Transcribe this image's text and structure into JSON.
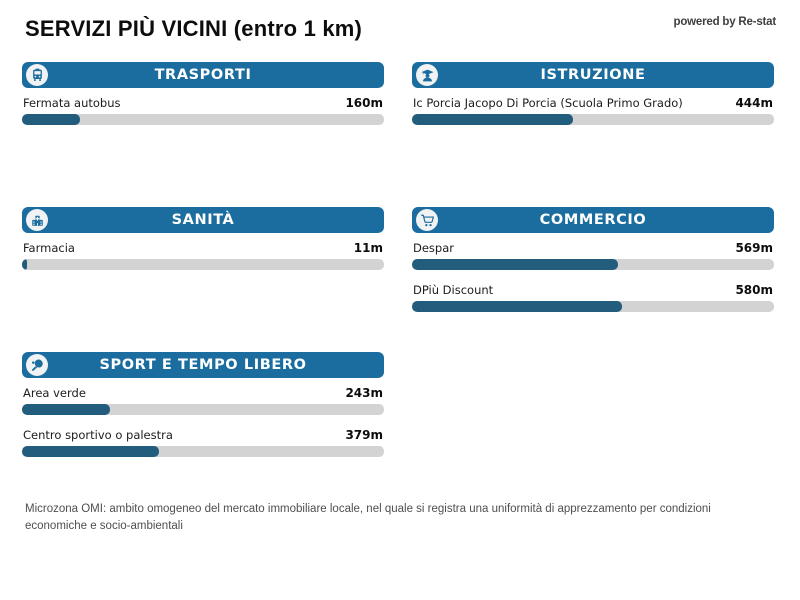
{
  "page": {
    "title": "SERVIZI PIÙ VICINI (entro 1 km)",
    "powered_by": "powered by Re-stat",
    "footer": "Microzona OMI: ambito omogeneo del mercato immobiliare locale, nel quale si registra una uniformità di apprezzamento per condizioni economiche e socio-ambientali"
  },
  "colors": {
    "header_blue": "#1a6d9e",
    "bar_fill": "#235d7d",
    "bar_track": "#d3d3d3"
  },
  "scale_max_m": 1000,
  "categories": [
    {
      "title": "TRASPORTI",
      "icon": "bus-icon",
      "items": [
        {
          "label": "Fermata autobus",
          "distance_m": 160,
          "value": "160m"
        }
      ]
    },
    {
      "title": "ISTRUZIONE",
      "icon": "graduate-icon",
      "items": [
        {
          "label": "Ic Porcia Jacopo Di Porcia (Scuola Primo Grado)",
          "distance_m": 444,
          "value": "444m"
        }
      ]
    },
    {
      "title": "SANITÀ",
      "icon": "hospital-icon",
      "items": [
        {
          "label": "Farmacia",
          "distance_m": 11,
          "value": "11m"
        }
      ]
    },
    {
      "title": "COMMERCIO",
      "icon": "cart-icon",
      "items": [
        {
          "label": "Despar",
          "distance_m": 569,
          "value": "569m"
        },
        {
          "label": "DPiù Discount",
          "distance_m": 580,
          "value": "580m"
        }
      ]
    },
    {
      "title": "SPORT E TEMPO LIBERO",
      "icon": "racket-icon",
      "items": [
        {
          "label": "Area verde",
          "distance_m": 243,
          "value": "243m"
        },
        {
          "label": "Centro sportivo o palestra",
          "distance_m": 379,
          "value": "379m"
        }
      ]
    }
  ],
  "chart_data": {
    "type": "bar",
    "orientation": "horizontal",
    "title": "SERVIZI PIÙ VICINI (entro 1 km)",
    "unit": "m",
    "xlim": [
      0,
      1000
    ],
    "groups": [
      "TRASPORTI",
      "ISTRUZIONE",
      "SANITÀ",
      "COMMERCIO",
      "COMMERCIO",
      "SPORT E TEMPO LIBERO",
      "SPORT E TEMPO LIBERO"
    ],
    "categories": [
      "Fermata autobus",
      "Ic Porcia Jacopo Di Porcia (Scuola Primo Grado)",
      "Farmacia",
      "Despar",
      "DPiù Discount",
      "Area verde",
      "Centro sportivo o palestra"
    ],
    "values": [
      160,
      444,
      11,
      569,
      580,
      243,
      379
    ]
  }
}
